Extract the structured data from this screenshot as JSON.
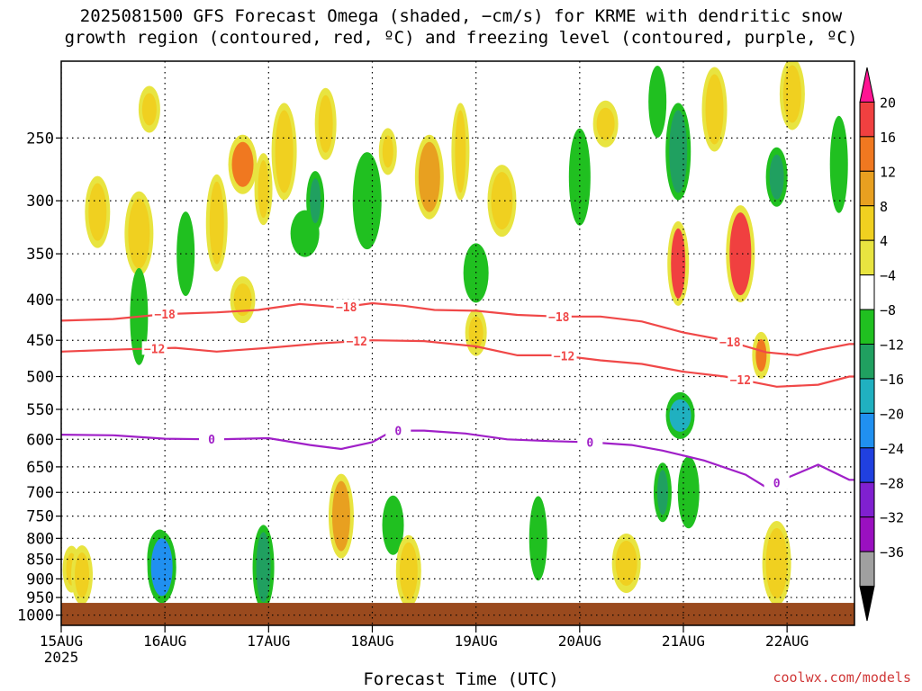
{
  "title": {
    "line1": "2025081500 GFS Forecast Omega (shaded, −cm/s) for KRME with dendritic snow",
    "line2": "growth region (contoured, red, ºC) and freezing level (contoured, purple, ºC)"
  },
  "credit": "coolwx.com/models",
  "chart_data": {
    "type": "heatmap",
    "xlabel": "Forecast Time (UTC)",
    "x_ticks": [
      "15AUG",
      "16AUG",
      "17AUG",
      "18AUG",
      "19AUG",
      "20AUG",
      "21AUG",
      "22AUG"
    ],
    "x_tick_subtitle": "2025",
    "x_range_days": [
      0,
      7.65
    ],
    "y_ticks": [
      250,
      300,
      350,
      400,
      450,
      500,
      550,
      600,
      650,
      700,
      750,
      800,
      850,
      900,
      950,
      1000
    ],
    "y_range_hpa": [
      200,
      1030
    ],
    "y_scale": "log-pressure",
    "grid": true,
    "ground_level_hpa": 965,
    "colorbar": {
      "levels": [
        20,
        16,
        12,
        8,
        4,
        -4,
        -8,
        -12,
        -16,
        -20,
        -24,
        -28,
        -32,
        -36
      ],
      "colors": [
        "#ff1493",
        "#f04040",
        "#f07820",
        "#e8a020",
        "#f0d020",
        "#e8e440",
        "#ffffff",
        "#20c020",
        "#20a060",
        "#20b0c0",
        "#2090f0",
        "#2040e0",
        "#8020d0",
        "#9a10c0",
        "#a0a0a0",
        "#000000"
      ]
    },
    "contours": [
      {
        "label": "-18",
        "color": "#f04848",
        "points": [
          [
            0,
            425
          ],
          [
            0.5,
            423
          ],
          [
            1.0,
            417
          ],
          [
            1.5,
            415
          ],
          [
            1.9,
            412
          ],
          [
            2.3,
            405
          ],
          [
            2.7,
            409
          ],
          [
            3.0,
            404
          ],
          [
            3.3,
            407
          ],
          [
            3.6,
            412
          ],
          [
            4.0,
            413
          ],
          [
            4.4,
            418
          ],
          [
            4.8,
            420
          ],
          [
            5.2,
            420
          ],
          [
            5.6,
            426
          ],
          [
            6.0,
            440
          ],
          [
            6.4,
            450
          ],
          [
            6.8,
            466
          ],
          [
            7.1,
            470
          ],
          [
            7.3,
            463
          ],
          [
            7.6,
            455
          ],
          [
            7.65,
            455
          ]
        ],
        "label_days": [
          1.0,
          2.75,
          4.8,
          6.45
        ]
      },
      {
        "label": "-12",
        "color": "#f04848",
        "points": [
          [
            0,
            465
          ],
          [
            0.6,
            462
          ],
          [
            1.1,
            460
          ],
          [
            1.5,
            465
          ],
          [
            2.0,
            460
          ],
          [
            2.5,
            454
          ],
          [
            3.0,
            450
          ],
          [
            3.5,
            451
          ],
          [
            4.0,
            458
          ],
          [
            4.4,
            470
          ],
          [
            4.8,
            470
          ],
          [
            5.2,
            477
          ],
          [
            5.6,
            482
          ],
          [
            6.0,
            493
          ],
          [
            6.4,
            500
          ],
          [
            6.9,
            515
          ],
          [
            7.3,
            512
          ],
          [
            7.6,
            500
          ],
          [
            7.65,
            500
          ]
        ],
        "label_days": [
          0.9,
          2.85,
          4.85,
          6.55
        ]
      },
      {
        "label": "0",
        "color": "#a020c8",
        "points": [
          [
            0,
            592
          ],
          [
            0.5,
            593
          ],
          [
            1.0,
            599
          ],
          [
            1.5,
            600
          ],
          [
            2.0,
            598
          ],
          [
            2.4,
            610
          ],
          [
            2.7,
            617
          ],
          [
            3.0,
            605
          ],
          [
            3.2,
            585
          ],
          [
            3.5,
            585
          ],
          [
            3.9,
            590
          ],
          [
            4.3,
            600
          ],
          [
            4.7,
            603
          ],
          [
            5.1,
            605
          ],
          [
            5.5,
            610
          ],
          [
            5.8,
            620
          ],
          [
            6.2,
            638
          ],
          [
            6.6,
            665
          ],
          [
            6.8,
            690
          ],
          [
            7.0,
            671
          ],
          [
            7.3,
            646
          ],
          [
            7.6,
            675
          ],
          [
            7.65,
            675
          ]
        ],
        "label_days": [
          1.45,
          3.25,
          5.1,
          6.9
        ]
      }
    ],
    "shaded_cells": [
      {
        "day": 0.1,
        "hpa": 875,
        "value": 4
      },
      {
        "day": 0.2,
        "hpa": 890,
        "value": 4
      },
      {
        "day": 0.35,
        "hpa": 310,
        "value": 4
      },
      {
        "day": 0.75,
        "hpa": 330,
        "value": 4
      },
      {
        "day": 0.75,
        "hpa": 420,
        "value": -8
      },
      {
        "day": 0.85,
        "hpa": 230,
        "value": 4
      },
      {
        "day": 0.95,
        "hpa": 850,
        "value": -8
      },
      {
        "day": 0.97,
        "hpa": 870,
        "value": -20
      },
      {
        "day": 1.2,
        "hpa": 350,
        "value": -8
      },
      {
        "day": 1.5,
        "hpa": 320,
        "value": 4
      },
      {
        "day": 1.75,
        "hpa": 400,
        "value": 4
      },
      {
        "day": 1.75,
        "hpa": 270,
        "value": 12
      },
      {
        "day": 1.95,
        "hpa": 290,
        "value": 4
      },
      {
        "day": 1.95,
        "hpa": 870,
        "value": -12
      },
      {
        "day": 2.15,
        "hpa": 260,
        "value": 4
      },
      {
        "day": 2.35,
        "hpa": 330,
        "value": -8
      },
      {
        "day": 2.45,
        "hpa": 300,
        "value": -12
      },
      {
        "day": 2.55,
        "hpa": 240,
        "value": 4
      },
      {
        "day": 2.7,
        "hpa": 750,
        "value": 8
      },
      {
        "day": 2.95,
        "hpa": 300,
        "value": -8
      },
      {
        "day": 3.15,
        "hpa": 260,
        "value": 4
      },
      {
        "day": 3.2,
        "hpa": 770,
        "value": -8
      },
      {
        "day": 3.35,
        "hpa": 880,
        "value": 4
      },
      {
        "day": 3.55,
        "hpa": 280,
        "value": 8
      },
      {
        "day": 3.85,
        "hpa": 260,
        "value": 4
      },
      {
        "day": 4.0,
        "hpa": 440,
        "value": 4
      },
      {
        "day": 4.0,
        "hpa": 370,
        "value": -8
      },
      {
        "day": 4.25,
        "hpa": 300,
        "value": 4
      },
      {
        "day": 4.6,
        "hpa": 800,
        "value": -8
      },
      {
        "day": 5.0,
        "hpa": 280,
        "value": -8
      },
      {
        "day": 5.25,
        "hpa": 240,
        "value": 4
      },
      {
        "day": 5.45,
        "hpa": 860,
        "value": 4
      },
      {
        "day": 5.75,
        "hpa": 225,
        "value": -8
      },
      {
        "day": 5.95,
        "hpa": 360,
        "value": 16
      },
      {
        "day": 5.95,
        "hpa": 260,
        "value": -12
      },
      {
        "day": 5.97,
        "hpa": 560,
        "value": -16
      },
      {
        "day": 5.8,
        "hpa": 700,
        "value": -12
      },
      {
        "day": 6.05,
        "hpa": 700,
        "value": -8
      },
      {
        "day": 6.3,
        "hpa": 230,
        "value": 4
      },
      {
        "day": 6.55,
        "hpa": 350,
        "value": 16
      },
      {
        "day": 6.75,
        "hpa": 470,
        "value": 12
      },
      {
        "day": 6.9,
        "hpa": 280,
        "value": -12
      },
      {
        "day": 7.05,
        "hpa": 220,
        "value": 4
      },
      {
        "day": 6.9,
        "hpa": 860,
        "value": 4
      },
      {
        "day": 7.5,
        "hpa": 270,
        "value": -8
      }
    ]
  }
}
